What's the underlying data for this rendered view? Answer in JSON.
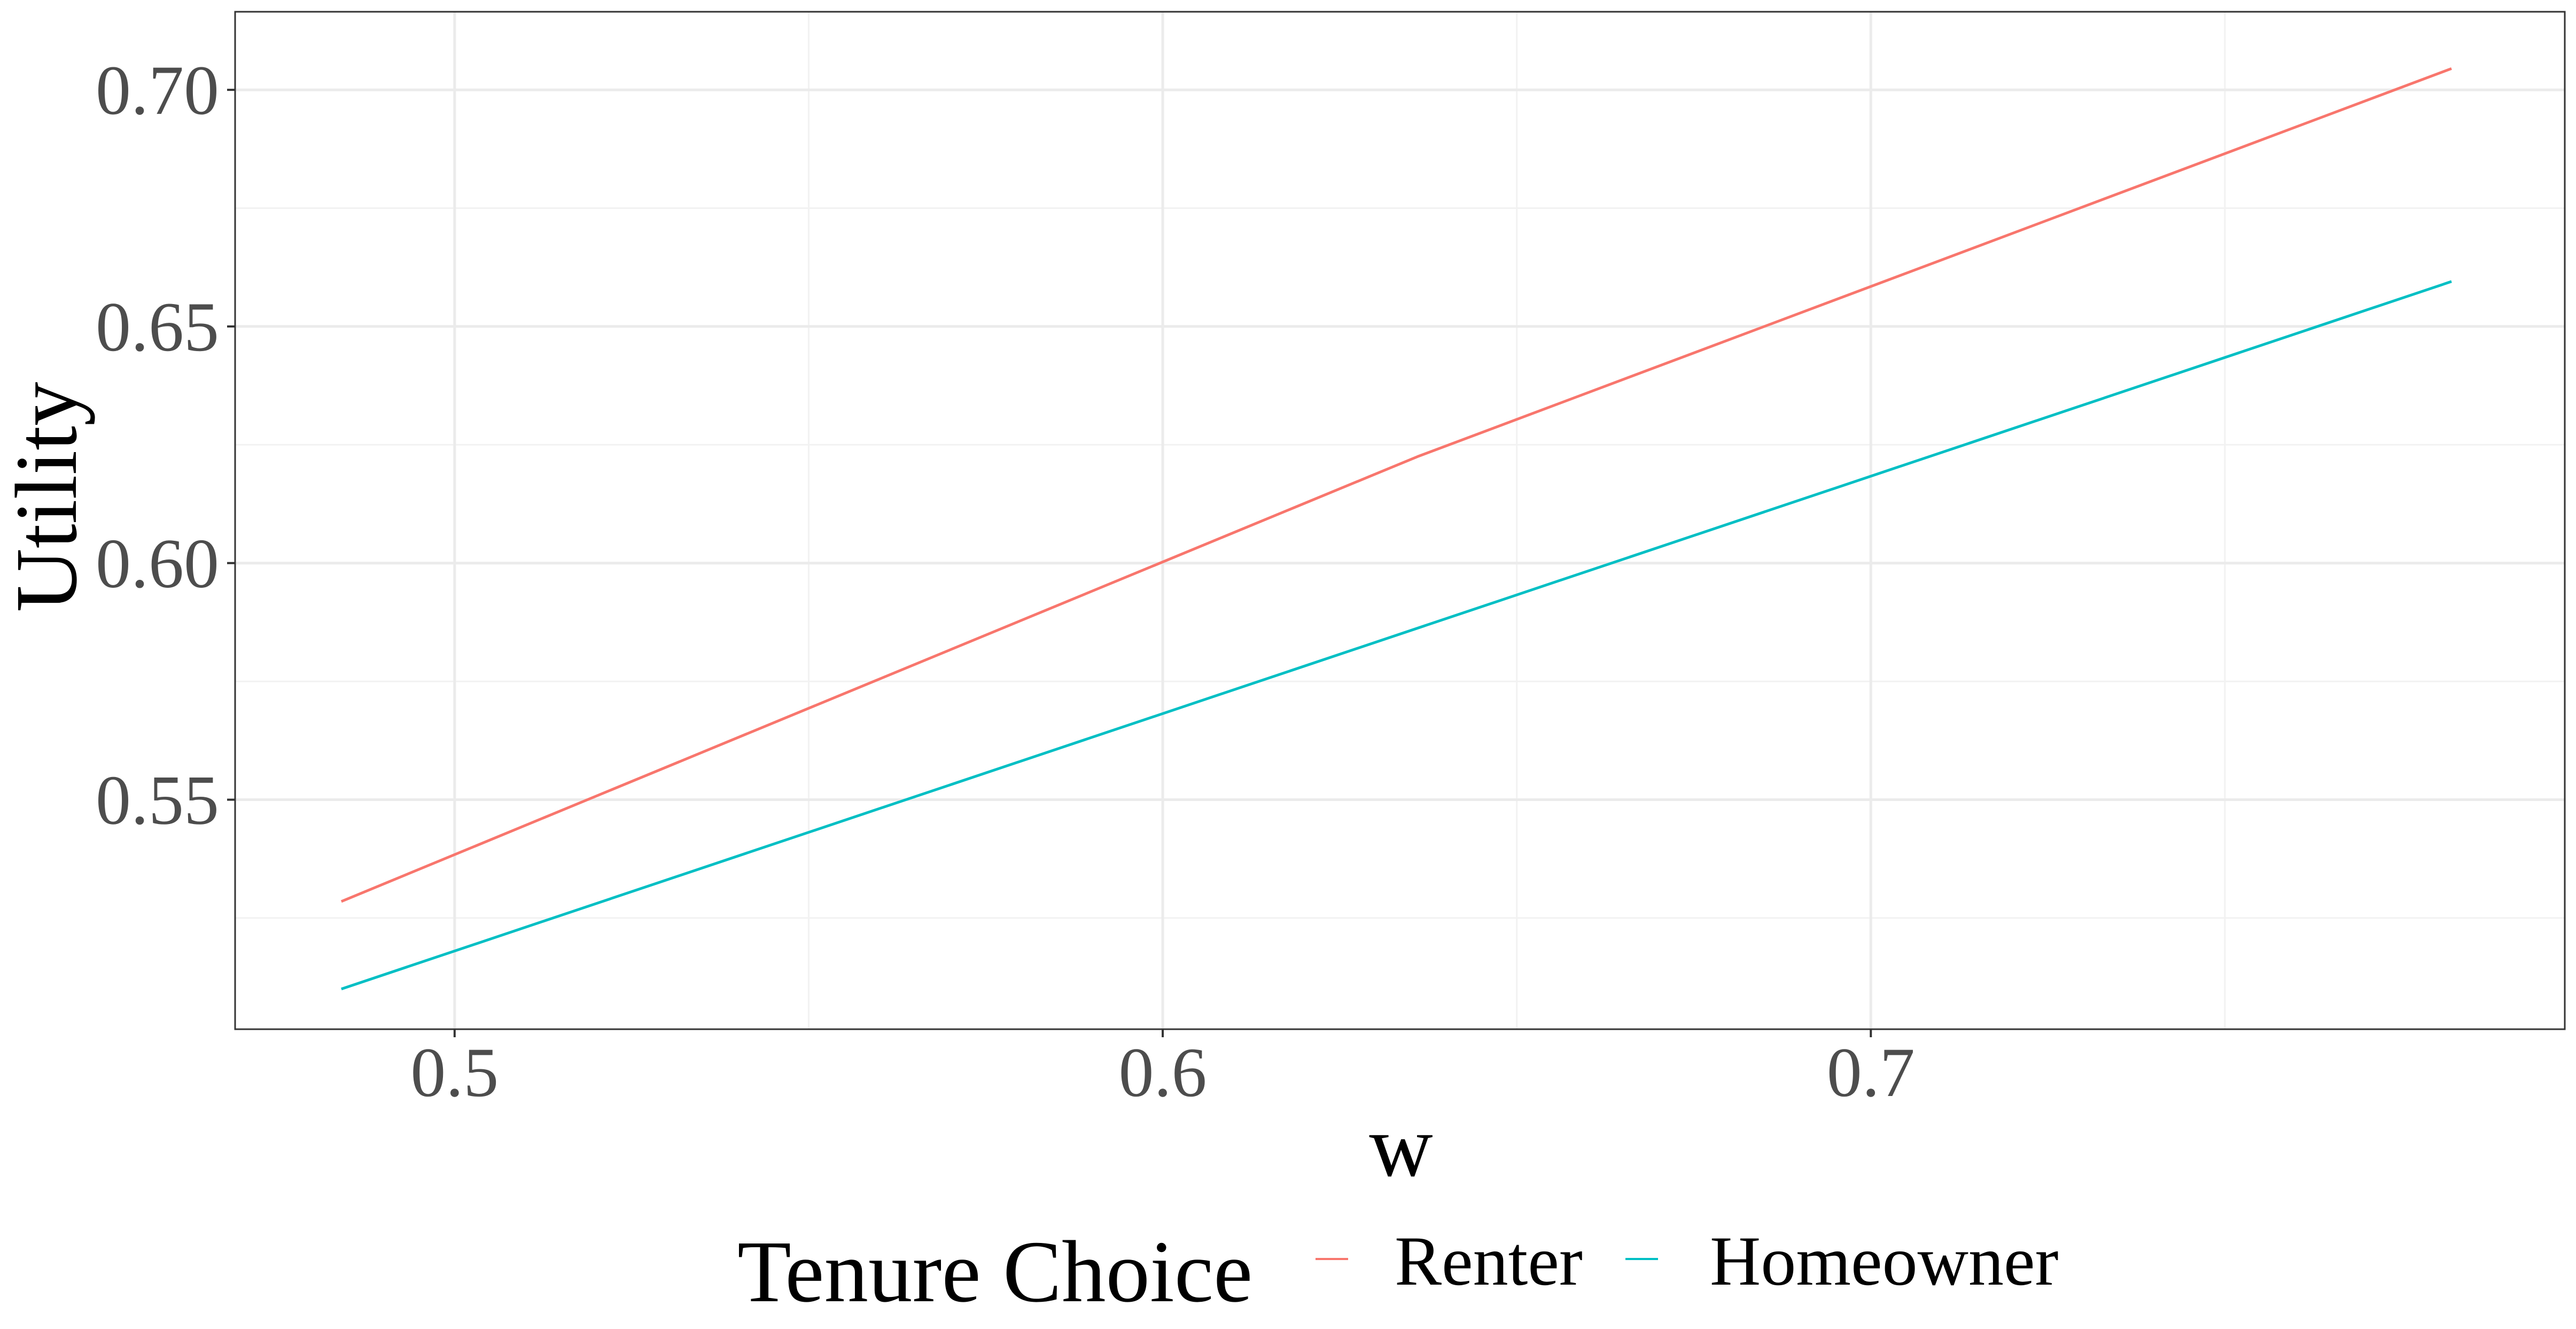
{
  "chart_data": {
    "type": "line",
    "title": "",
    "xlabel": "w",
    "ylabel": "Utility",
    "xlim": [
      0.469,
      0.798
    ],
    "ylim": [
      0.5015,
      0.7165
    ],
    "x_ticks": [
      0.5,
      0.6,
      0.7
    ],
    "x_tick_labels": [
      "0.5",
      "0.6",
      "0.7"
    ],
    "x_minor_ticks": [
      0.55,
      0.65,
      0.75
    ],
    "y_ticks": [
      0.55,
      0.6,
      0.65,
      0.7
    ],
    "y_tick_labels": [
      "0.55",
      "0.60",
      "0.65",
      "0.70"
    ],
    "y_minor_ticks": [
      0.525,
      0.575,
      0.625,
      0.675
    ],
    "grid": true,
    "legend": {
      "title": "Tenure Choice",
      "position": "bottom"
    },
    "series": [
      {
        "name": "Renter",
        "color": "#F8766D",
        "x": [
          0.484,
          0.636,
          0.782
        ],
        "y": [
          0.5285,
          0.6225,
          0.7045
        ]
      },
      {
        "name": "Homeowner",
        "color": "#00BFC4",
        "x": [
          0.484,
          0.782
        ],
        "y": [
          0.51,
          0.6595
        ]
      }
    ]
  }
}
